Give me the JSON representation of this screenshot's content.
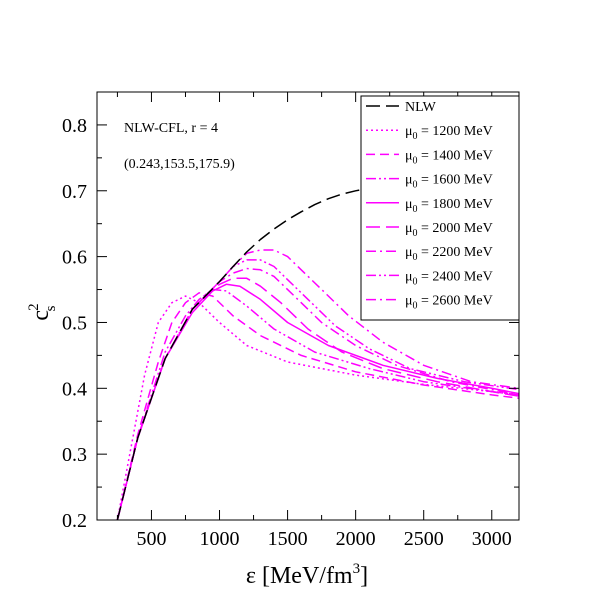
{
  "chart_data": {
    "type": "line",
    "title": "",
    "xlabel": "ε [MeV/fm",
    "xlabel_sup": "3",
    "xlabel_end": "]",
    "ylabel": "c",
    "ylabel_sup": "2",
    "ylabel_sub": "s",
    "xlim": [
      100,
      3200
    ],
    "ylim": [
      0.2,
      0.85
    ],
    "xticks": [
      500,
      1000,
      1500,
      2000,
      2500,
      3000
    ],
    "xtick_labels": [
      "500",
      "1000",
      "1500",
      "2000",
      "2500",
      "3000"
    ],
    "yticks": [
      0.2,
      0.3,
      0.4,
      0.5,
      0.6,
      0.7,
      0.8
    ],
    "ytick_labels": [
      "0.2",
      "0.3",
      "0.4",
      "0.5",
      "0.6",
      "0.7",
      "0.8"
    ],
    "grid": false,
    "legend_position": "top-right",
    "annotations": [
      "NLW-CFL, r = 4",
      "(0.243,153.5,175.9)"
    ],
    "series": [
      {
        "name": "NLW",
        "color": "#000000",
        "dash": "long-dash",
        "x": [
          250,
          400,
          600,
          800,
          1000,
          1100,
          1200,
          1300,
          1400,
          1500,
          1600,
          1700,
          1800,
          1900,
          2000,
          2100,
          2200
        ],
        "y": [
          0.2,
          0.325,
          0.445,
          0.52,
          0.562,
          0.585,
          0.607,
          0.626,
          0.642,
          0.656,
          0.668,
          0.679,
          0.688,
          0.695,
          0.7,
          0.704,
          0.707
        ]
      },
      {
        "name_prefix": "μ",
        "name_sub": "0",
        "name_value": " = 1200 MeV",
        "color": "#ff00ff",
        "dash": "dot",
        "x": [
          250,
          350,
          450,
          550,
          650,
          750,
          850,
          1000,
          1200,
          1500,
          2000,
          2500,
          3000,
          3200
        ],
        "y": [
          0.2,
          0.31,
          0.42,
          0.5,
          0.53,
          0.54,
          0.53,
          0.5,
          0.465,
          0.44,
          0.42,
          0.406,
          0.395,
          0.39
        ]
      },
      {
        "name_prefix": "μ",
        "name_sub": "0",
        "name_value": " = 1400 MeV",
        "color": "#ff00ff",
        "dash": "dash",
        "x": [
          250,
          400,
          550,
          650,
          750,
          850,
          950,
          1100,
          1300,
          1600,
          2000,
          2500,
          3000,
          3200
        ],
        "y": [
          0.2,
          0.33,
          0.44,
          0.5,
          0.53,
          0.545,
          0.54,
          0.51,
          0.48,
          0.45,
          0.425,
          0.405,
          0.39,
          0.385
        ]
      },
      {
        "name_prefix": "μ",
        "name_sub": "0",
        "name_value": " = 1600 MeV",
        "color": "#ff00ff",
        "dash": "dash-dot-dot",
        "x": [
          250,
          400,
          600,
          750,
          850,
          950,
          1050,
          1200,
          1400,
          1700,
          2100,
          2500,
          3000,
          3200
        ],
        "y": [
          0.2,
          0.325,
          0.455,
          0.51,
          0.535,
          0.55,
          0.548,
          0.525,
          0.49,
          0.455,
          0.43,
          0.41,
          0.395,
          0.39
        ]
      },
      {
        "name_prefix": "μ",
        "name_sub": "0",
        "name_value": " = 1800 MeV",
        "color": "#ff00ff",
        "dash": "solid",
        "x": [
          250,
          400,
          600,
          800,
          950,
          1050,
          1150,
          1300,
          1500,
          1800,
          2200,
          2600,
          3000,
          3200
        ],
        "y": [
          0.2,
          0.325,
          0.445,
          0.515,
          0.548,
          0.558,
          0.555,
          0.535,
          0.5,
          0.465,
          0.435,
          0.415,
          0.4,
          0.392
        ]
      },
      {
        "name_prefix": "μ",
        "name_sub": "0",
        "name_value": " = 2000 MeV",
        "color": "#ff00ff",
        "dash": "long-dash",
        "x": [
          250,
          400,
          600,
          800,
          1000,
          1100,
          1200,
          1300,
          1450,
          1650,
          1900,
          2200,
          2600,
          3000,
          3200
        ],
        "y": [
          0.2,
          0.325,
          0.445,
          0.52,
          0.558,
          0.567,
          0.567,
          0.555,
          0.53,
          0.49,
          0.455,
          0.43,
          0.41,
          0.395,
          0.388
        ]
      },
      {
        "name_prefix": "μ",
        "name_sub": "0",
        "name_value": " = 2200 MeV",
        "color": "#ff00ff",
        "dash": "dash-dot",
        "x": [
          250,
          400,
          600,
          800,
          1000,
          1100,
          1200,
          1300,
          1400,
          1550,
          1750,
          2000,
          2300,
          2700,
          3000,
          3200
        ],
        "y": [
          0.2,
          0.325,
          0.445,
          0.52,
          0.562,
          0.575,
          0.582,
          0.58,
          0.57,
          0.54,
          0.5,
          0.465,
          0.435,
          0.41,
          0.398,
          0.39
        ]
      },
      {
        "name_prefix": "μ",
        "name_sub": "0",
        "name_value": " = 2400 MeV",
        "color": "#ff00ff",
        "dash": "dash-dot-dot",
        "x": [
          250,
          400,
          600,
          800,
          1000,
          1100,
          1200,
          1300,
          1400,
          1500,
          1650,
          1850,
          2100,
          2400,
          2800,
          3200
        ],
        "y": [
          0.2,
          0.325,
          0.445,
          0.52,
          0.562,
          0.585,
          0.595,
          0.595,
          0.585,
          0.565,
          0.535,
          0.495,
          0.46,
          0.43,
          0.41,
          0.398
        ]
      },
      {
        "name_prefix": "μ",
        "name_sub": "0",
        "name_value": " = 2600 MeV",
        "color": "#ff00ff",
        "dash": "dash-dot",
        "x": [
          250,
          400,
          600,
          800,
          1000,
          1100,
          1200,
          1300,
          1400,
          1500,
          1600,
          1750,
          1950,
          2200,
          2500,
          2850,
          3200
        ],
        "y": [
          0.2,
          0.325,
          0.445,
          0.52,
          0.562,
          0.585,
          0.605,
          0.61,
          0.61,
          0.6,
          0.58,
          0.55,
          0.51,
          0.47,
          0.435,
          0.41,
          0.4
        ]
      }
    ]
  }
}
